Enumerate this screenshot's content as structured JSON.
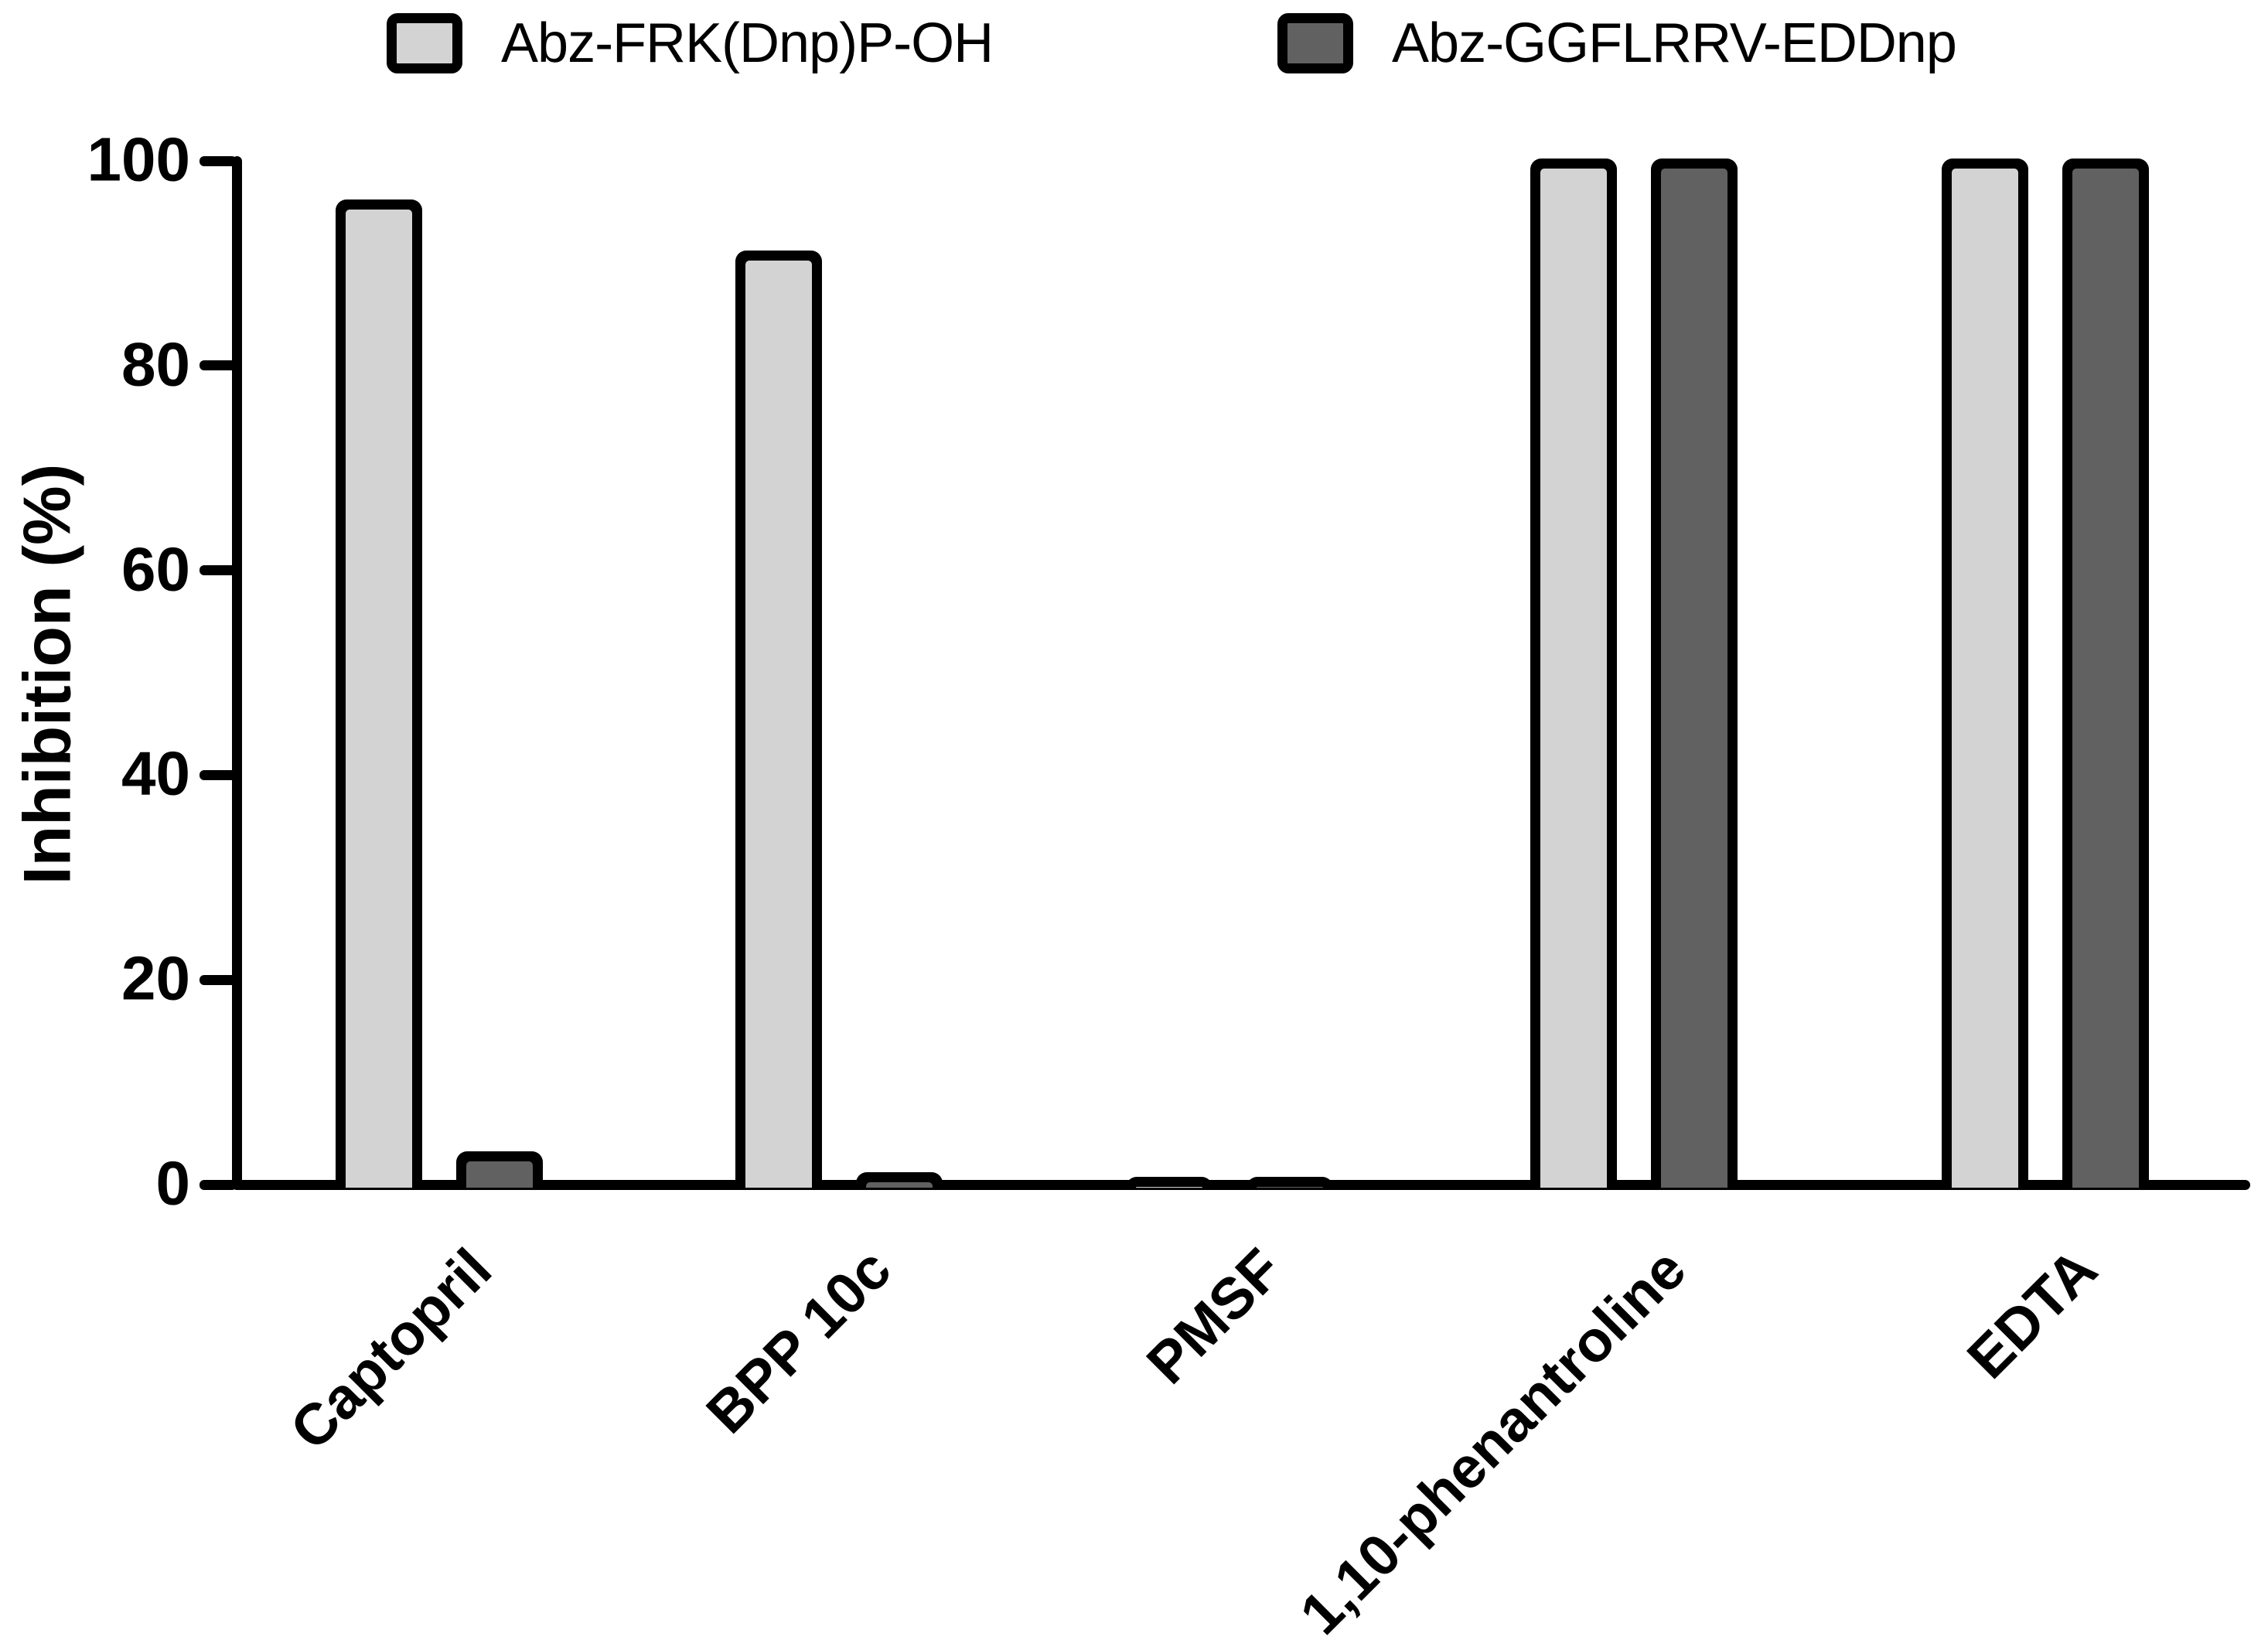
{
  "chart_data": {
    "type": "bar",
    "title": "",
    "xlabel": "",
    "ylabel": "Inhibition (%)",
    "ylim": [
      0,
      100
    ],
    "y_ticks": [
      0,
      20,
      40,
      60,
      80,
      100
    ],
    "grid": false,
    "legend_position": "top",
    "bar_border_color": "#000000",
    "categories": [
      "Captopril",
      "BPP 10c",
      "PMSF",
      "1,10-phenantroline",
      "EDTA"
    ],
    "series": [
      {
        "name": "Abz-FRK(Dnp)P-OH",
        "color": "#d3d3d3",
        "values": [
          96,
          91,
          0.5,
          100,
          100
        ]
      },
      {
        "name": "Abz-GGFLRRV-EDDnp",
        "color": "#616161",
        "values": [
          3,
          1,
          0.5,
          100,
          100
        ]
      }
    ]
  }
}
